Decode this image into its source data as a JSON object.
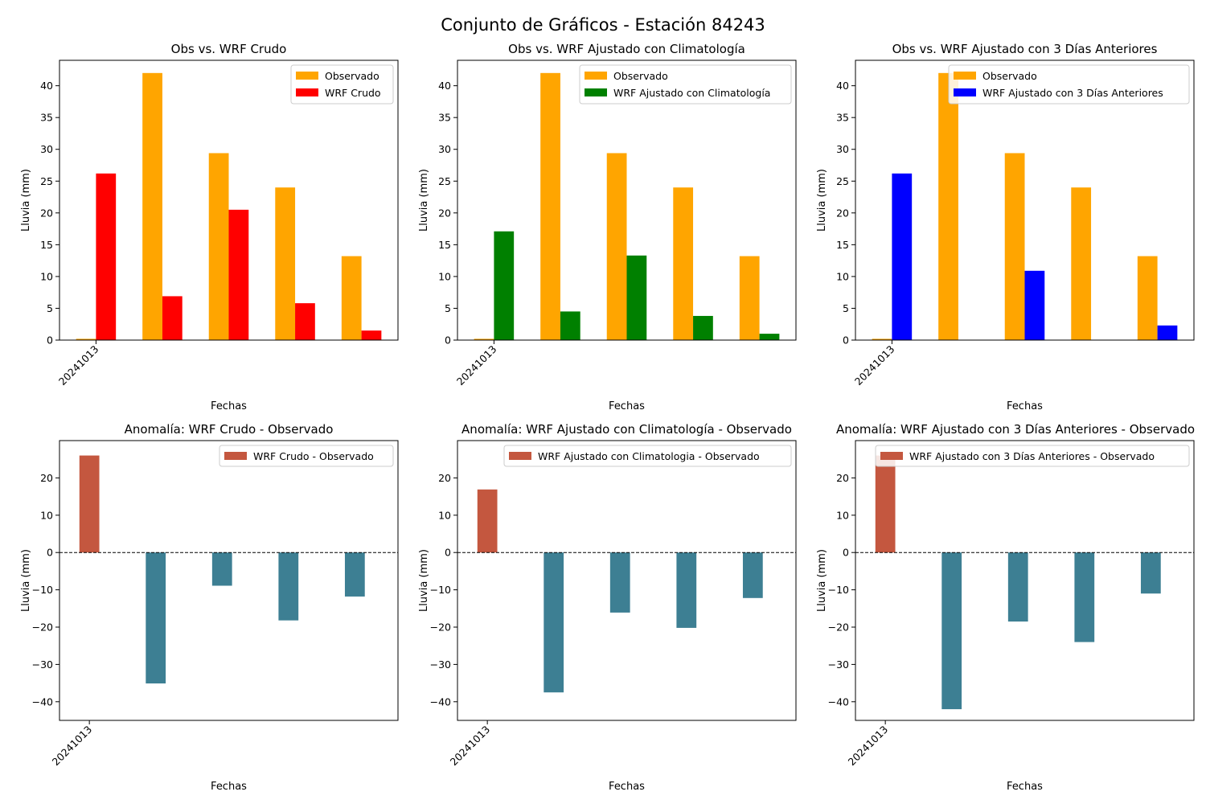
{
  "figure": {
    "suptitle": "Conjunto de Gráficos - Estación 84243"
  },
  "colors": {
    "observed": "#FFA500",
    "wrf_raw": "#FF0000",
    "wrf_clim": "#008000",
    "wrf_prev3": "#0000FF",
    "anomaly_positive": "#C4573F",
    "anomaly_negative": "#3D7F93"
  },
  "chart_data": [
    {
      "type": "bar",
      "title": "Obs vs. WRF Crudo",
      "xlabel": "Fechas",
      "ylabel": "Lluvia (mm)",
      "xtick_labels": [
        "20241013"
      ],
      "ylim": [
        0,
        44
      ],
      "yticks": [
        0,
        5,
        10,
        15,
        20,
        25,
        30,
        35,
        40
      ],
      "legend_position": "upper right",
      "series": [
        {
          "name": "Observado",
          "values": [
            0.2,
            42.0,
            29.4,
            24.0,
            13.2
          ]
        },
        {
          "name": "WRF Crudo",
          "values": [
            26.2,
            6.9,
            20.5,
            5.8,
            1.5
          ]
        }
      ]
    },
    {
      "type": "bar",
      "title": "Obs vs. WRF Ajustado con Climatología",
      "xlabel": "Fechas",
      "ylabel": "Lluvia (mm)",
      "xtick_labels": [
        "20241013"
      ],
      "ylim": [
        0,
        44
      ],
      "yticks": [
        0,
        5,
        10,
        15,
        20,
        25,
        30,
        35,
        40
      ],
      "legend_position": "upper right",
      "series": [
        {
          "name": "Observado",
          "values": [
            0.2,
            42.0,
            29.4,
            24.0,
            13.2
          ]
        },
        {
          "name": "WRF Ajustado con Climatología",
          "values": [
            17.1,
            4.5,
            13.3,
            3.8,
            1.0
          ]
        }
      ]
    },
    {
      "type": "bar",
      "title": "Obs vs. WRF Ajustado con 3 Días Anteriores",
      "xlabel": "Fechas",
      "ylabel": "Lluvia (mm)",
      "xtick_labels": [
        "20241013"
      ],
      "ylim": [
        0,
        44
      ],
      "yticks": [
        0,
        5,
        10,
        15,
        20,
        25,
        30,
        35,
        40
      ],
      "legend_position": "upper right",
      "series": [
        {
          "name": "Observado",
          "values": [
            0.2,
            42.0,
            29.4,
            24.0,
            13.2
          ]
        },
        {
          "name": "WRF Ajustado con 3 Días Anteriores",
          "values": [
            26.2,
            0.0,
            10.9,
            0.0,
            2.3
          ]
        }
      ]
    },
    {
      "type": "bar",
      "title": "Anomalía: WRF Crudo - Observado",
      "xlabel": "Fechas",
      "ylabel": "Lluvia (mm)",
      "xtick_labels": [
        "20241013"
      ],
      "ylim": [
        -45,
        30
      ],
      "yticks": [
        -40,
        -30,
        -20,
        -10,
        0,
        10,
        20
      ],
      "zero_line": "dashed",
      "legend_position": "upper right",
      "series": [
        {
          "name": "WRF Crudo - Observado",
          "values": [
            26.0,
            -35.1,
            -8.9,
            -18.2,
            -11.8
          ]
        }
      ]
    },
    {
      "type": "bar",
      "title": "Anomalía: WRF Ajustado con Climatología - Observado",
      "xlabel": "Fechas",
      "ylabel": "Lluvia (mm)",
      "xtick_labels": [
        "20241013"
      ],
      "ylim": [
        -45,
        30
      ],
      "yticks": [
        -40,
        -30,
        -20,
        -10,
        0,
        10,
        20
      ],
      "zero_line": "dashed",
      "legend_position": "upper right",
      "series": [
        {
          "name": "WRF Ajustado con Climatologia - Observado",
          "values": [
            16.9,
            -37.5,
            -16.1,
            -20.2,
            -12.2
          ]
        }
      ]
    },
    {
      "type": "bar",
      "title": "Anomalía: WRF Ajustado con 3 Días Anteriores - Observado",
      "xlabel": "Fechas",
      "ylabel": "Lluvia (mm)",
      "xtick_labels": [
        "20241013"
      ],
      "ylim": [
        -45,
        30
      ],
      "yticks": [
        -40,
        -30,
        -20,
        -10,
        0,
        10,
        20
      ],
      "zero_line": "dashed",
      "legend_position": "upper right",
      "series": [
        {
          "name": "WRF Ajustado con 3 Días Anteriores - Observado",
          "values": [
            26.0,
            -42.0,
            -18.5,
            -24.0,
            -11.0
          ]
        }
      ]
    }
  ]
}
